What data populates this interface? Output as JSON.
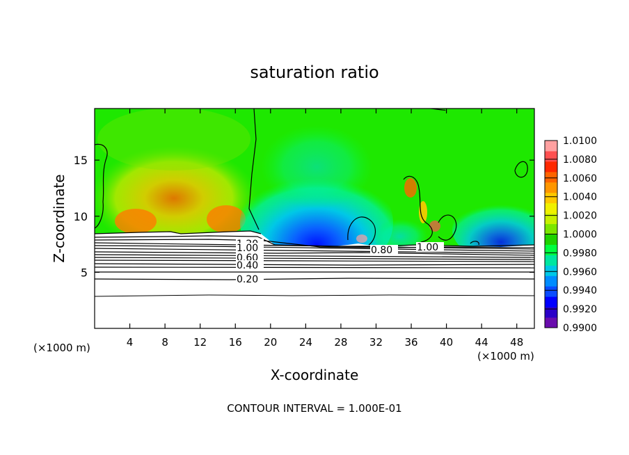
{
  "chart_data": {
    "type": "heatmap",
    "title": "saturation ratio",
    "xlabel": "X-coordinate",
    "ylabel": "Z-coordinate",
    "x_unit_label": "(×1000 m)",
    "y_unit_label": "(×1000 m)",
    "xlim": [
      0,
      50
    ],
    "ylim": [
      0,
      19.6
    ],
    "x_ticks": [
      4,
      8,
      12,
      16,
      20,
      24,
      28,
      32,
      36,
      40,
      44,
      48
    ],
    "y_ticks": [
      5,
      10,
      15
    ],
    "colorbar": {
      "min": 0.99,
      "max": 1.01,
      "tick_labels": [
        "1.0100",
        "1.0080",
        "1.0060",
        "1.0040",
        "1.0020",
        "1.0000",
        "0.9980",
        "0.9960",
        "0.9940",
        "0.9920",
        "0.9900"
      ],
      "colors": [
        "#6a0dad",
        "#2b00c8",
        "#0000ff",
        "#0a4cff",
        "#008cff",
        "#00c8e6",
        "#00e6a0",
        "#00ff40",
        "#1ed200",
        "#7ce600",
        "#c8f000",
        "#f0f000",
        "#ffc800",
        "#ff9600",
        "#ff6400",
        "#ff2800",
        "#ff5050",
        "#ffa0a0"
      ]
    },
    "contours": [
      {
        "label": "0.20",
        "z": 4.6
      },
      {
        "label": "0.40",
        "z": 5.7
      },
      {
        "label": "0.60",
        "z": 6.3
      },
      {
        "label": "0.80",
        "z": 7.25
      },
      {
        "label": "1.00",
        "z": 7.2
      },
      {
        "label": "1.00",
        "z": 7.8
      },
      {
        "label": "1.20",
        "z": 7.95
      }
    ],
    "contour_interval_text": "CONTOUR INTERVAL = 1.000E-01"
  }
}
